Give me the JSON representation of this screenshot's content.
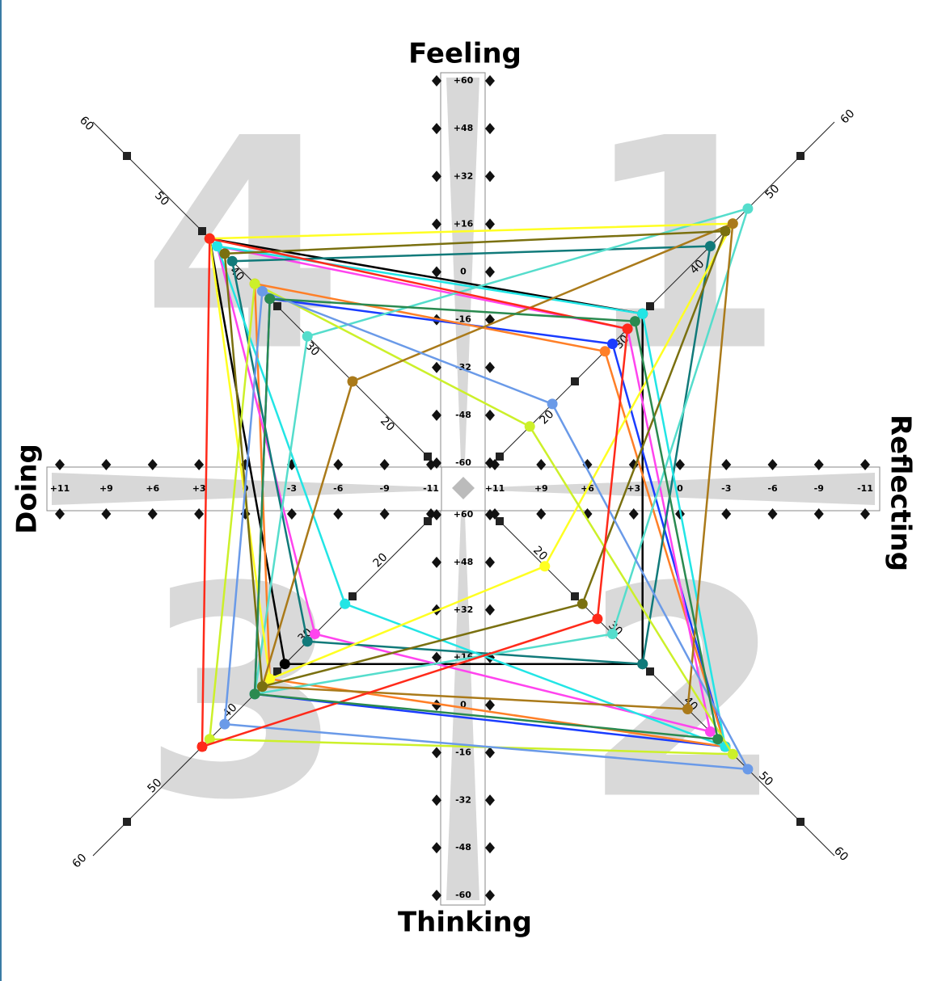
{
  "chart_data": {
    "type": "kolb",
    "titles": {
      "top": "Feeling",
      "bottom": "Thinking",
      "left": "Doing",
      "right": "Reflecting"
    },
    "quadrants": [
      "4",
      "1",
      "2",
      "3"
    ],
    "rlim": [
      20,
      60
    ],
    "rticks": [
      20,
      30,
      40,
      50,
      60
    ],
    "feeling_ticks": [
      {
        "value": 60,
        "label": "+60"
      },
      {
        "value": 48,
        "label": "+48"
      },
      {
        "value": 32,
        "label": "+32"
      },
      {
        "value": 16,
        "label": "+16"
      },
      0,
      -16,
      -32,
      -48,
      -60
    ],
    "thinking_ticks": [
      {
        "value": 60,
        "label": "+60"
      },
      {
        "value": 48,
        "label": "+48"
      },
      {
        "value": 32,
        "label": "+32"
      },
      {
        "value": 16,
        "label": "+16"
      },
      0,
      -16,
      -32,
      -48,
      -60
    ],
    "doing_ticks": [
      {
        "value": 11,
        "label": "+11"
      },
      {
        "value": 9,
        "label": "+9"
      },
      {
        "value": 6,
        "label": "+6"
      },
      {
        "value": 3,
        "label": "+3"
      },
      0,
      -3,
      -6,
      -9,
      -11
    ],
    "reflecting_ticks": [
      {
        "value": 11,
        "label": "+11"
      },
      {
        "value": 9,
        "label": "+9"
      },
      {
        "value": 6,
        "label": "+6"
      },
      {
        "value": 3,
        "label": "+3"
      },
      0,
      -3,
      -6,
      -9,
      -11
    ],
    "series": [
      {
        "color": "#000000",
        "values": [
          49,
          39,
          39,
          39
        ]
      },
      {
        "color": "#1a3cff",
        "values": [
          41,
          35,
          50,
          43
        ]
      },
      {
        "color": "#ff7f27",
        "values": [
          43,
          34,
          50,
          41
        ]
      },
      {
        "color": "#ff44ee",
        "values": [
          48,
          37,
          48,
          35
        ]
      },
      {
        "color": "#117a7a",
        "values": [
          46,
          48,
          39,
          36
        ]
      },
      {
        "color": "#22e5e5",
        "values": [
          48,
          39,
          50,
          31
        ]
      },
      {
        "color": "#55ddcc",
        "values": [
          36,
          53,
          35,
          43
        ]
      },
      {
        "color": "#ffff22",
        "values": [
          49,
          51,
          26,
          41
        ]
      },
      {
        "color": "#ccf02a",
        "values": [
          43,
          24,
          51,
          49
        ]
      },
      {
        "color": "#aa7a1a",
        "values": [
          30,
          51,
          45,
          42
        ]
      },
      {
        "color": "#7a7010",
        "values": [
          47,
          50,
          31,
          42
        ]
      },
      {
        "color": "#6a9ae8",
        "values": [
          42,
          27,
          53,
          47
        ]
      },
      {
        "color": "#ff2a1a",
        "values": [
          49,
          37,
          33,
          50
        ]
      },
      {
        "color": "#2a8a50",
        "values": [
          41,
          38,
          49,
          43
        ]
      }
    ]
  }
}
